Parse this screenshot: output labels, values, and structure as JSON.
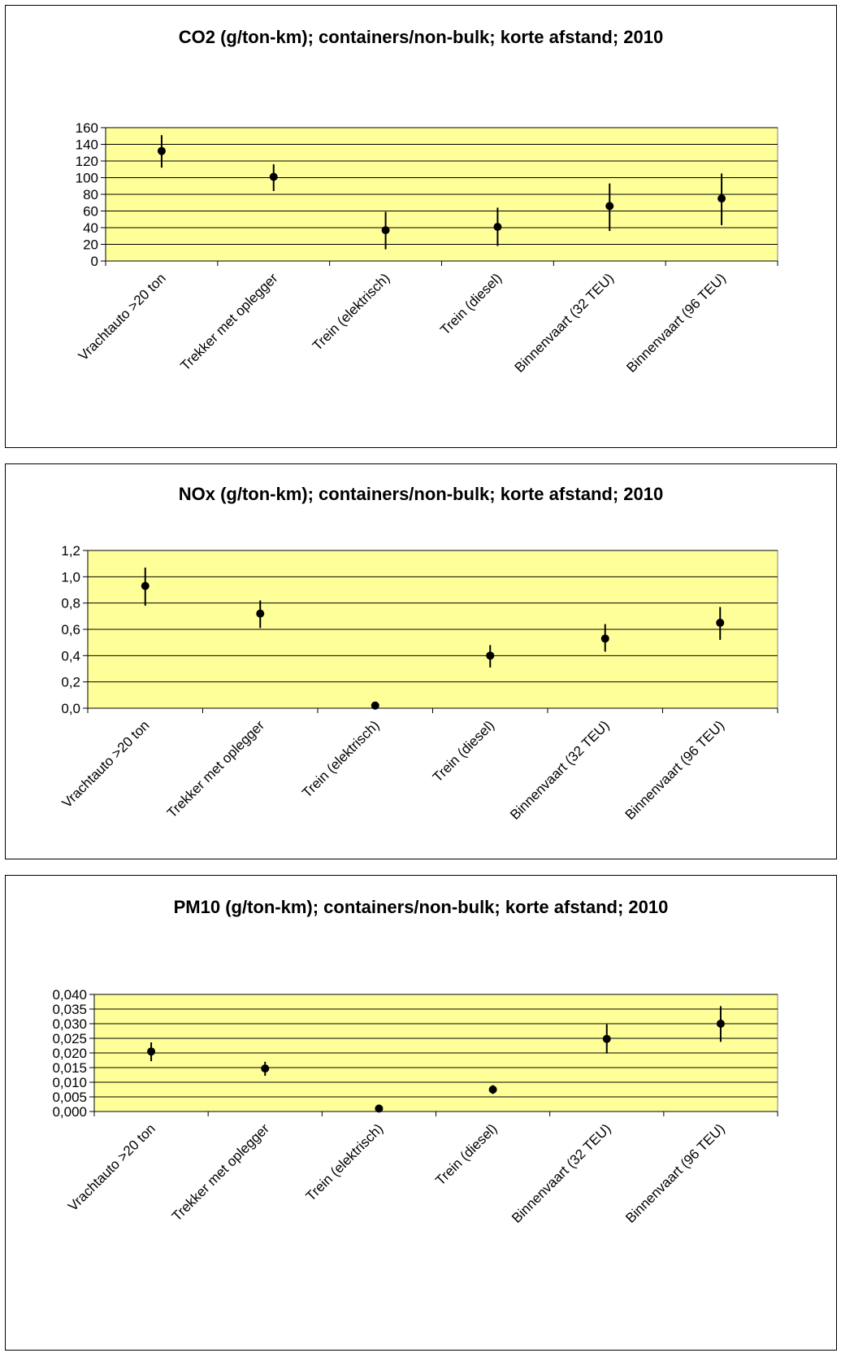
{
  "colors": {
    "plot_background": "#ffff99",
    "grid": "#000000",
    "marker": "#000000",
    "border": "#000000"
  },
  "chart_data": [
    {
      "type": "scatter",
      "title": "CO2 (g/ton-km); containers/non-bulk; korte afstand; 2010",
      "categories": [
        "Vrachtauto >20 ton",
        "Trekker met oplegger",
        "Trein (elektrisch)",
        "Trein (diesel)",
        "Binnenvaart (32 TEU)",
        "Binnenvaart (96 TEU)"
      ],
      "values": [
        132,
        101,
        37,
        41,
        66,
        75
      ],
      "err_low": [
        112,
        84,
        14,
        18,
        36,
        43
      ],
      "err_high": [
        151,
        116,
        59,
        64,
        93,
        105
      ],
      "ylim": [
        0,
        160
      ],
      "yticks": [
        "0",
        "20",
        "40",
        "60",
        "80",
        "100",
        "120",
        "140",
        "160"
      ],
      "grid": true,
      "legend": "none"
    },
    {
      "type": "scatter",
      "title": "NOx (g/ton-km); containers/non-bulk; korte afstand; 2010",
      "categories": [
        "Vrachtauto >20 ton",
        "Trekker met oplegger",
        "Trein (elektrisch)",
        "Trein (diesel)",
        "Binnenvaart (32 TEU)",
        "Binnenvaart (96 TEU)"
      ],
      "values": [
        0.93,
        0.72,
        0.02,
        0.4,
        0.53,
        0.65
      ],
      "err_low": [
        0.78,
        0.61,
        0.02,
        0.31,
        0.43,
        0.52
      ],
      "err_high": [
        1.07,
        0.82,
        0.02,
        0.48,
        0.64,
        0.77
      ],
      "ylim": [
        0,
        1.2
      ],
      "yticks": [
        "0,0",
        "0,2",
        "0,4",
        "0,6",
        "0,8",
        "1,0",
        "1,2"
      ],
      "grid": true,
      "legend": "none"
    },
    {
      "type": "scatter",
      "title": "PM10 (g/ton-km); containers/non-bulk; korte afstand; 2010",
      "categories": [
        "Vrachtauto >20 ton",
        "Trekker met oplegger",
        "Trein (elektrisch)",
        "Trein (diesel)",
        "Binnenvaart (32 TEU)",
        "Binnenvaart (96 TEU)"
      ],
      "values": [
        0.0205,
        0.0147,
        0.001,
        0.0075,
        0.0248,
        0.03
      ],
      "err_low": [
        0.0172,
        0.0122,
        0.0008,
        0.006,
        0.0198,
        0.0238
      ],
      "err_high": [
        0.0236,
        0.017,
        0.0012,
        0.009,
        0.0298,
        0.036
      ],
      "ylim": [
        0,
        0.04
      ],
      "yticks": [
        "0,000",
        "0,005",
        "0,010",
        "0,015",
        "0,020",
        "0,025",
        "0,030",
        "0,035",
        "0,040"
      ],
      "grid": true,
      "legend": "none"
    }
  ]
}
